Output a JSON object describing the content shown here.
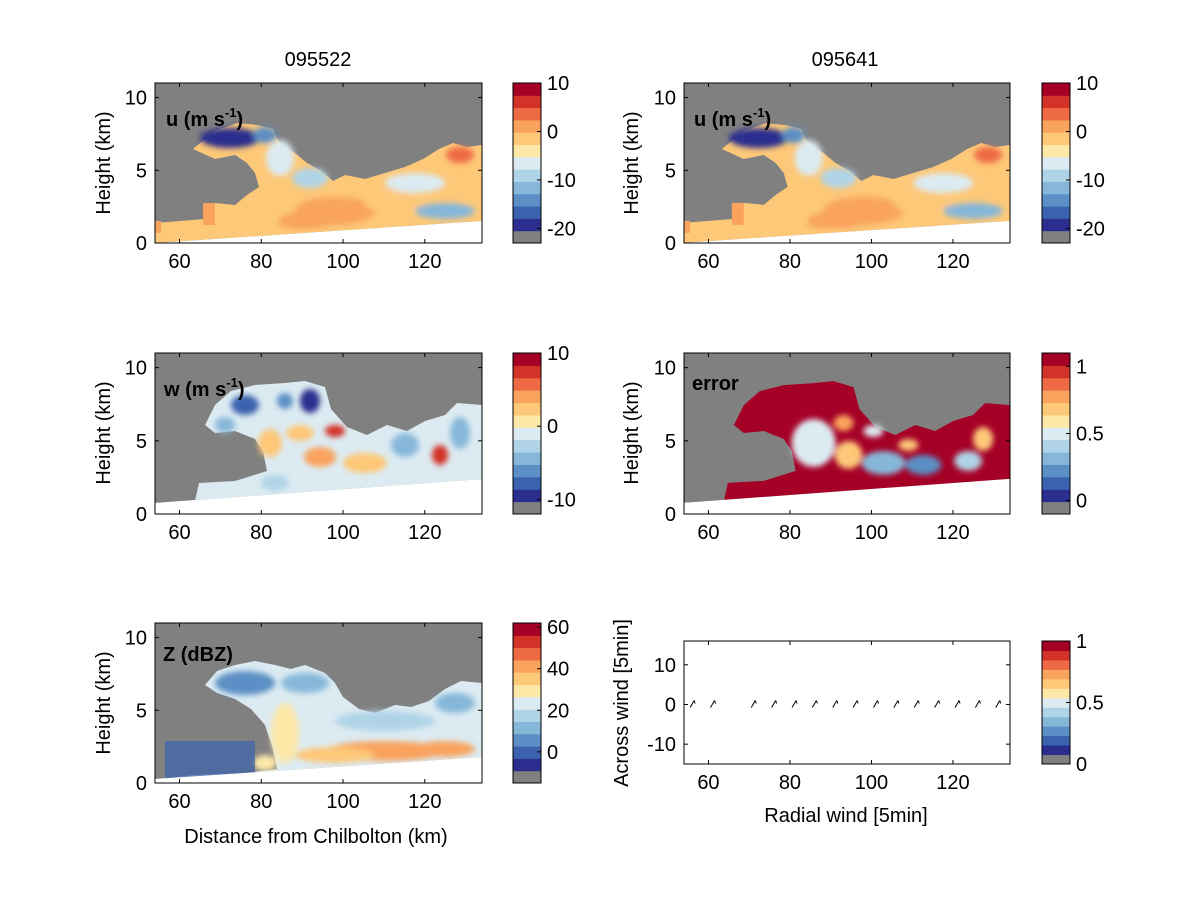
{
  "figure": {
    "column_titles": [
      "095522",
      "095641"
    ],
    "xlabel_bottom_left": "Distance from Chilbolton (km)",
    "ylabel": "Height (km)"
  },
  "colormap": [
    "#808080",
    "#2b2d8f",
    "#3b62ad",
    "#5b8fc5",
    "#86b7d9",
    "#b0d4e7",
    "#dcebf2",
    "#fde8a8",
    "#fdc878",
    "#f9a35e",
    "#ee6a44",
    "#d23228",
    "#a50026"
  ],
  "chart_data": [
    {
      "id": "u1",
      "type": "heatmap",
      "panel_label": "u (m s",
      "panel_label_sup": "-1",
      "xlim": [
        54,
        134
      ],
      "ylim": [
        0,
        11
      ],
      "xticks": [
        60,
        80,
        100,
        120
      ],
      "yticks": [
        0,
        5,
        10
      ],
      "colorbar": {
        "ticks": [
          10,
          0,
          -10,
          -20
        ],
        "range": [
          -23,
          10
        ]
      }
    },
    {
      "id": "u2",
      "type": "heatmap",
      "panel_label": "u (m s",
      "panel_label_sup": "-1",
      "xlim": [
        54,
        134
      ],
      "ylim": [
        0,
        11
      ],
      "xticks": [
        60,
        80,
        100,
        120
      ],
      "yticks": [
        0,
        5,
        10
      ],
      "colorbar": {
        "ticks": [
          10,
          0,
          -10,
          -20
        ],
        "range": [
          -23,
          10
        ]
      }
    },
    {
      "id": "w",
      "type": "heatmap",
      "panel_label": "w (m s",
      "panel_label_sup": "-1",
      "xlim": [
        54,
        134
      ],
      "ylim": [
        0,
        11
      ],
      "xticks": [
        60,
        80,
        100,
        120
      ],
      "yticks": [
        0,
        5,
        10
      ],
      "colorbar": {
        "ticks": [
          10,
          0,
          -10
        ],
        "range": [
          -12,
          10
        ]
      }
    },
    {
      "id": "error",
      "type": "heatmap",
      "panel_label": "error",
      "xlim": [
        54,
        134
      ],
      "ylim": [
        0,
        11
      ],
      "xticks": [
        60,
        80,
        100,
        120
      ],
      "yticks": [
        0,
        5,
        10
      ],
      "colorbar": {
        "ticks": [
          1,
          0.5,
          0
        ],
        "range": [
          -0.1,
          1.1
        ]
      }
    },
    {
      "id": "Z",
      "type": "heatmap",
      "panel_label": "Z (dBZ)",
      "xlim": [
        54,
        134
      ],
      "ylim": [
        0,
        11
      ],
      "xticks": [
        60,
        80,
        100,
        120
      ],
      "yticks": [
        0,
        5,
        10
      ],
      "xlabel": "Distance from Chilbolton (km)",
      "colorbar": {
        "ticks": [
          60,
          40,
          20,
          0
        ],
        "range": [
          -15,
          62
        ]
      }
    },
    {
      "id": "wind",
      "type": "scatter",
      "xlim": [
        54,
        134
      ],
      "ylim": [
        -15,
        16
      ],
      "xticks": [
        60,
        80,
        100,
        120
      ],
      "yticks": [
        10,
        0,
        -10
      ],
      "xlabel": "Radial wind [5min]",
      "ylabel": "Across wind [5min]",
      "x": [
        56,
        61,
        71,
        76,
        81,
        86,
        91,
        96,
        101,
        106,
        111,
        116,
        121,
        126,
        131
      ],
      "y": [
        0,
        0,
        0,
        0,
        0,
        0,
        0,
        0,
        0,
        0,
        0,
        0,
        0,
        0,
        0
      ],
      "colorbar": {
        "ticks": [
          1,
          0.5,
          0
        ],
        "range": [
          0,
          1
        ]
      }
    }
  ]
}
